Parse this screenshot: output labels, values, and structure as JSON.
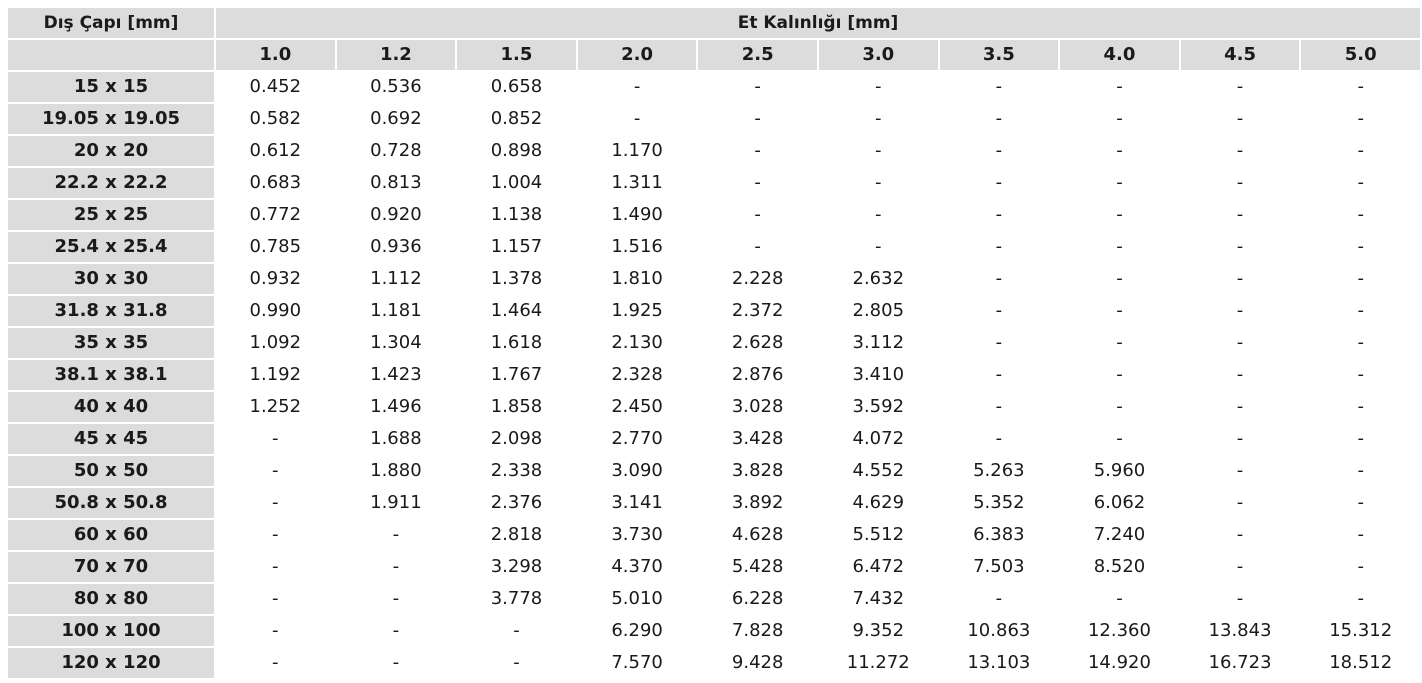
{
  "table": {
    "corner_header": "Dış Çapı [mm]",
    "group_header": "Et Kalınlığı [mm]",
    "thickness_headers": [
      "1.0",
      "1.2",
      "1.5",
      "2.0",
      "2.5",
      "3.0",
      "3.5",
      "4.0",
      "4.5",
      "5.0"
    ],
    "rows": [
      {
        "size": "15 x 15",
        "values": [
          "0.452",
          "0.536",
          "0.658",
          "-",
          "-",
          "-",
          "-",
          "-",
          "-",
          "-"
        ]
      },
      {
        "size": "19.05 x 19.05",
        "values": [
          "0.582",
          "0.692",
          "0.852",
          "-",
          "-",
          "-",
          "-",
          "-",
          "-",
          "-"
        ]
      },
      {
        "size": "20 x 20",
        "values": [
          "0.612",
          "0.728",
          "0.898",
          "1.170",
          "-",
          "-",
          "-",
          "-",
          "-",
          "-"
        ]
      },
      {
        "size": "22.2 x 22.2",
        "values": [
          "0.683",
          "0.813",
          "1.004",
          "1.311",
          "-",
          "-",
          "-",
          "-",
          "-",
          "-"
        ]
      },
      {
        "size": "25 x 25",
        "values": [
          "0.772",
          "0.920",
          "1.138",
          "1.490",
          "-",
          "-",
          "-",
          "-",
          "-",
          "-"
        ]
      },
      {
        "size": "25.4 x 25.4",
        "values": [
          "0.785",
          "0.936",
          "1.157",
          "1.516",
          "-",
          "-",
          "-",
          "-",
          "-",
          "-"
        ]
      },
      {
        "size": "30 x 30",
        "values": [
          "0.932",
          "1.112",
          "1.378",
          "1.810",
          "2.228",
          "2.632",
          "-",
          "-",
          "-",
          "-"
        ]
      },
      {
        "size": "31.8 x 31.8",
        "values": [
          "0.990",
          "1.181",
          "1.464",
          "1.925",
          "2.372",
          "2.805",
          "-",
          "-",
          "-",
          "-"
        ]
      },
      {
        "size": "35 x 35",
        "values": [
          "1.092",
          "1.304",
          "1.618",
          "2.130",
          "2.628",
          "3.112",
          "-",
          "-",
          "-",
          "-"
        ]
      },
      {
        "size": "38.1 x 38.1",
        "values": [
          "1.192",
          "1.423",
          "1.767",
          "2.328",
          "2.876",
          "3.410",
          "-",
          "-",
          "-",
          "-"
        ]
      },
      {
        "size": "40 x 40",
        "values": [
          "1.252",
          "1.496",
          "1.858",
          "2.450",
          "3.028",
          "3.592",
          "-",
          "-",
          "-",
          "-"
        ]
      },
      {
        "size": "45 x 45",
        "values": [
          "-",
          "1.688",
          "2.098",
          "2.770",
          "3.428",
          "4.072",
          "-",
          "-",
          "-",
          "-"
        ]
      },
      {
        "size": "50 x 50",
        "values": [
          "-",
          "1.880",
          "2.338",
          "3.090",
          "3.828",
          "4.552",
          "5.263",
          "5.960",
          "-",
          "-"
        ]
      },
      {
        "size": "50.8 x 50.8",
        "values": [
          "-",
          "1.911",
          "2.376",
          "3.141",
          "3.892",
          "4.629",
          "5.352",
          "6.062",
          "-",
          "-"
        ]
      },
      {
        "size": "60 x 60",
        "values": [
          "-",
          "-",
          "2.818",
          "3.730",
          "4.628",
          "5.512",
          "6.383",
          "7.240",
          "-",
          "-"
        ]
      },
      {
        "size": "70 x 70",
        "values": [
          "-",
          "-",
          "3.298",
          "4.370",
          "5.428",
          "6.472",
          "7.503",
          "8.520",
          "-",
          "-"
        ]
      },
      {
        "size": "80 x 80",
        "values": [
          "-",
          "-",
          "3.778",
          "5.010",
          "6.228",
          "7.432",
          "-",
          "-",
          "-",
          "-"
        ]
      },
      {
        "size": "100 x 100",
        "values": [
          "-",
          "-",
          "-",
          "6.290",
          "7.828",
          "9.352",
          "10.863",
          "12.360",
          "13.843",
          "15.312"
        ]
      },
      {
        "size": "120 x 120",
        "values": [
          "-",
          "-",
          "-",
          "7.570",
          "9.428",
          "11.272",
          "13.103",
          "14.920",
          "16.723",
          "18.512"
        ]
      }
    ]
  },
  "colors": {
    "header_background": "#dcdcdc",
    "cell_background": "#ffffff",
    "text": "#1a1a1a"
  }
}
